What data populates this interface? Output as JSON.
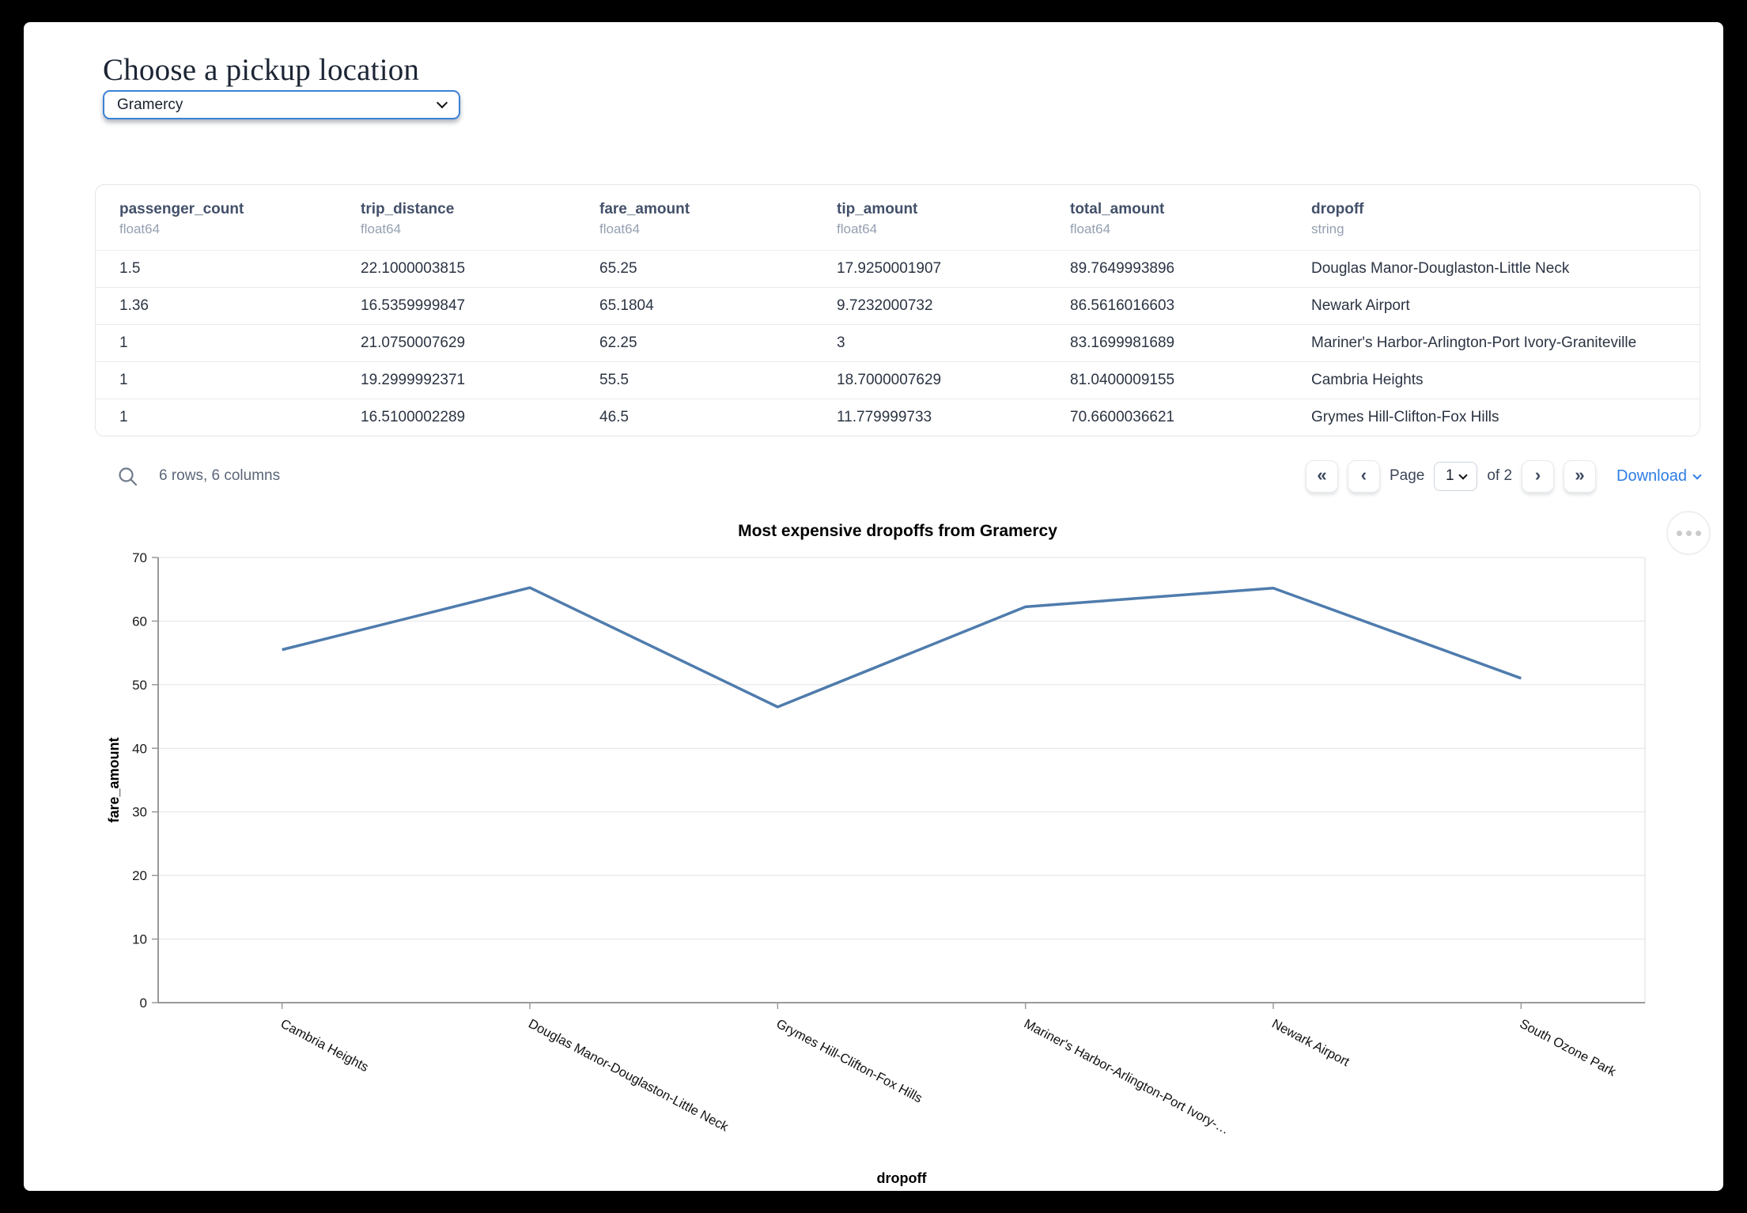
{
  "page": {
    "title": "Choose a pickup location"
  },
  "pickup_select": {
    "value": "Gramercy"
  },
  "table": {
    "columns": [
      {
        "name": "passenger_count",
        "dtype": "float64"
      },
      {
        "name": "trip_distance",
        "dtype": "float64"
      },
      {
        "name": "fare_amount",
        "dtype": "float64"
      },
      {
        "name": "tip_amount",
        "dtype": "float64"
      },
      {
        "name": "total_amount",
        "dtype": "float64"
      },
      {
        "name": "dropoff",
        "dtype": "string"
      }
    ],
    "rows": [
      [
        "1.5",
        "22.1000003815",
        "65.25",
        "17.9250001907",
        "89.7649993896",
        "Douglas Manor-Douglaston-Little Neck"
      ],
      [
        "1.36",
        "16.5359999847",
        "65.1804",
        "9.7232000732",
        "86.5616016603",
        "Newark Airport"
      ],
      [
        "1",
        "21.0750007629",
        "62.25",
        "3",
        "83.1699981689",
        "Mariner's Harbor-Arlington-Port Ivory-Graniteville"
      ],
      [
        "1",
        "19.2999992371",
        "55.5",
        "18.7000007629",
        "81.0400009155",
        "Cambria Heights"
      ],
      [
        "1",
        "16.5100002289",
        "46.5",
        "11.779999733",
        "70.6600036621",
        "Grymes Hill-Clifton-Fox Hills"
      ]
    ],
    "footer": {
      "summary": "6 rows, 6 columns",
      "first_button": "«",
      "prev_button": "‹",
      "page_label": "Page",
      "page_value": "1",
      "of_label": "of 2",
      "next_button": "›",
      "last_button": "»",
      "download_label": "Download"
    }
  },
  "chart_data": {
    "type": "line",
    "title": "Most expensive dropoffs from Gramercy",
    "xlabel": "dropoff",
    "ylabel": "fare_amount",
    "categories": [
      "Cambria Heights",
      "Douglas Manor-Douglaston-Little Neck",
      "Grymes Hill-Clifton-Fox Hills",
      "Mariner's Harbor-Arlington-Port Ivory-…",
      "Newark Airport",
      "South Ozone Park"
    ],
    "values": [
      55.5,
      65.25,
      46.5,
      62.25,
      65.1804,
      51
    ],
    "ylim": [
      0,
      70
    ],
    "yticks": [
      0,
      10,
      20,
      30,
      40,
      50,
      60,
      70
    ],
    "grid": true,
    "legend": "none",
    "line_color": "#4f7cad"
  },
  "colors": {
    "accent_blue": "#2e7ee4",
    "select_border": "#3b82d6",
    "header_text": "#43506a",
    "line": "#4f7cad"
  }
}
